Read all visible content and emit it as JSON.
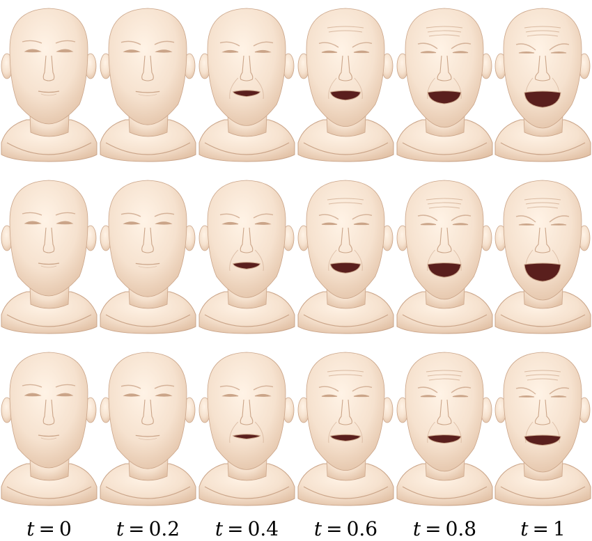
{
  "figure": {
    "variable": "t",
    "equals": "=",
    "columns": [
      {
        "value": "0",
        "t": 0
      },
      {
        "value": "0.2",
        "t": 0.2
      },
      {
        "value": "0.4",
        "t": 0.4
      },
      {
        "value": "0.6",
        "t": 0.6
      },
      {
        "value": "0.8",
        "t": 0.8
      },
      {
        "value": "1",
        "t": 1
      }
    ],
    "rows": [
      {
        "variant": "a"
      },
      {
        "variant": "b"
      },
      {
        "variant": "c"
      }
    ],
    "colors": {
      "skin": "#f6e2cf",
      "skin_shade": "#e3c3a8",
      "skin_dark": "#caa488",
      "mouth": "#5a1f1d",
      "background": "#ffffff"
    }
  }
}
